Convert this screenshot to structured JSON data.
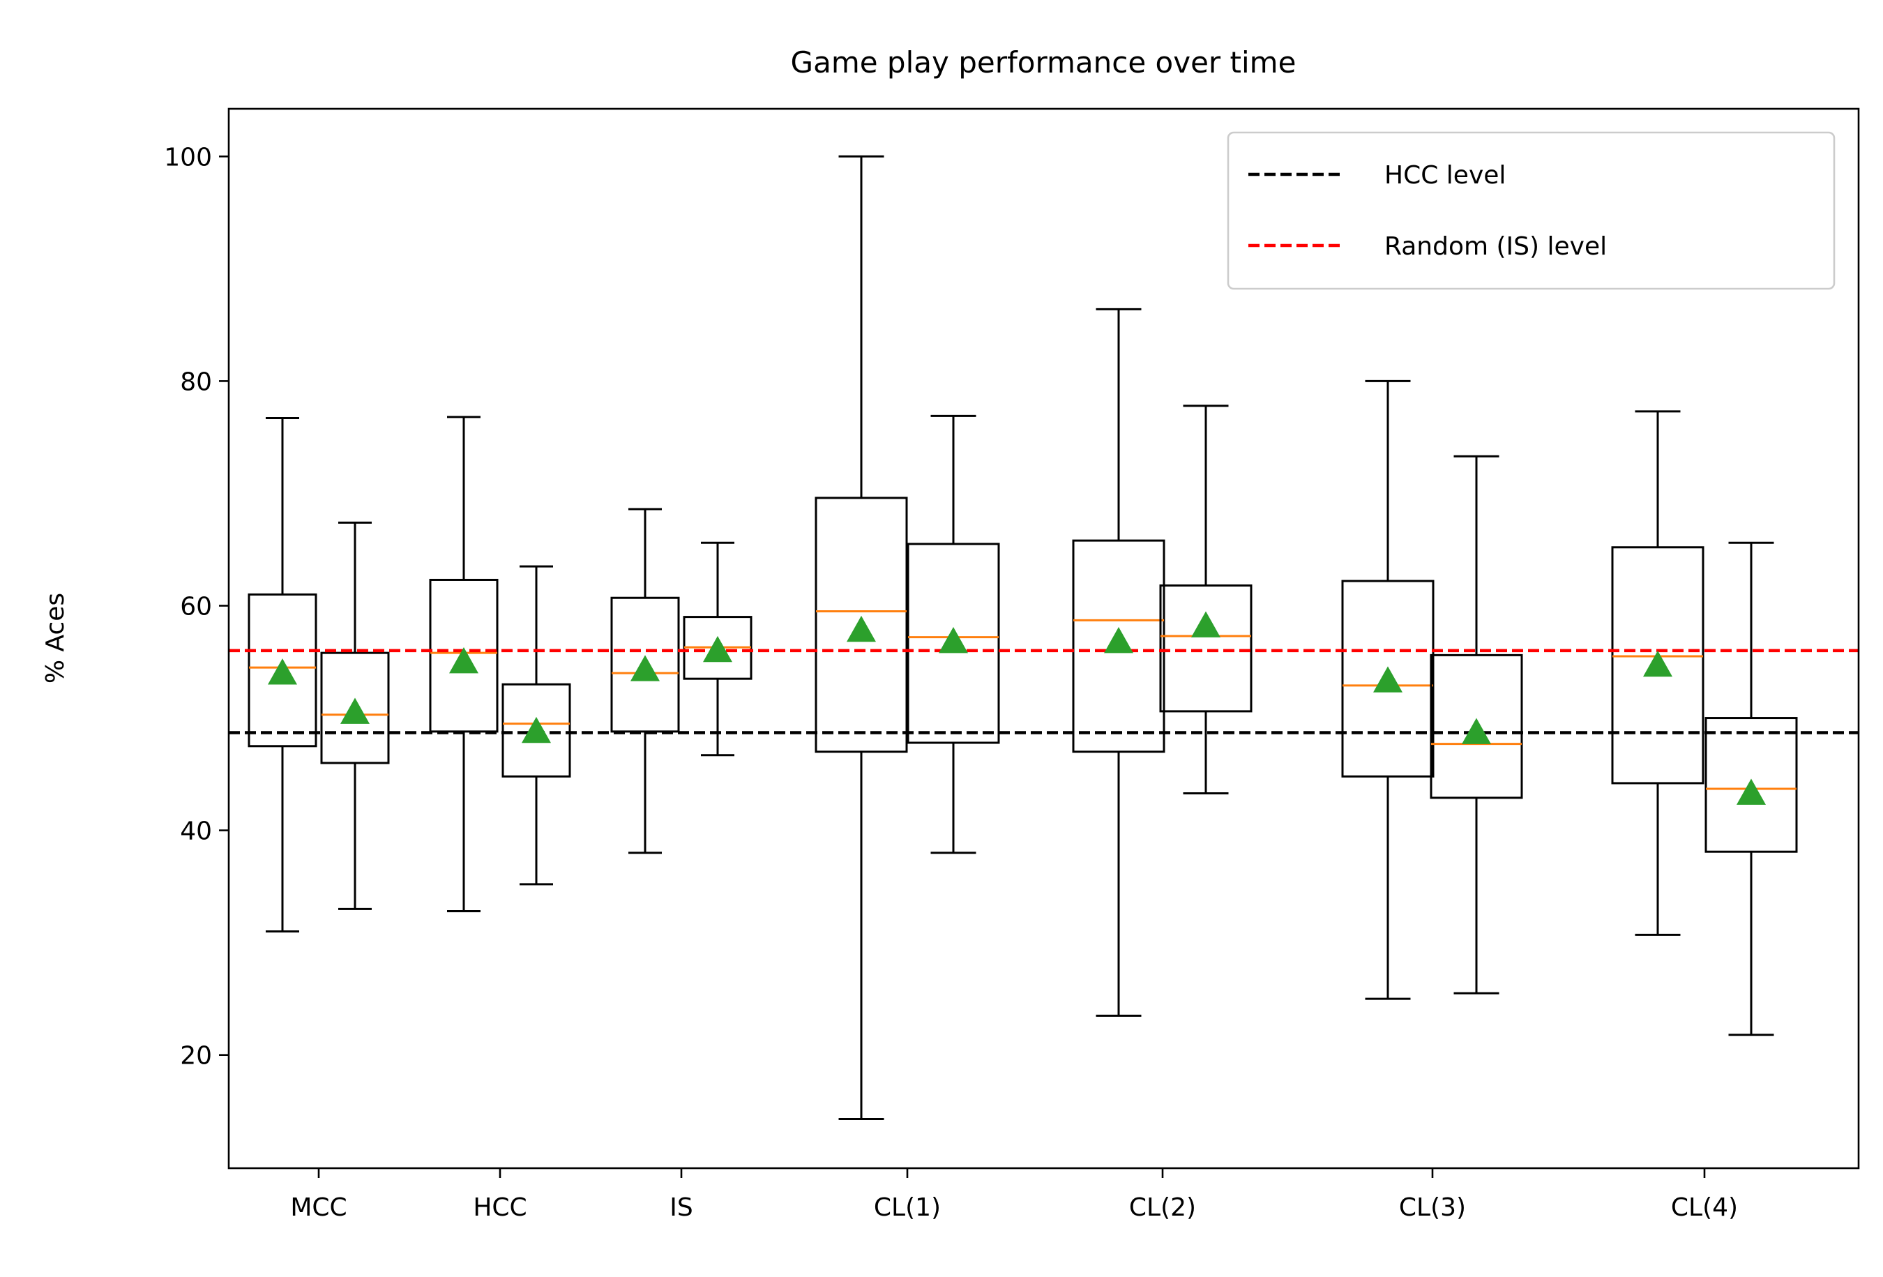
{
  "chart_data": {
    "type": "box",
    "title": "Game play performance over time",
    "xlabel": "",
    "ylabel": "% Aces",
    "ylim": [
      10,
      104.5
    ],
    "yticks": [
      20,
      40,
      60,
      80,
      100
    ],
    "categories": [
      "MCC",
      "HCC",
      "IS",
      "CL(1)",
      "CL(2)",
      "CL(3)",
      "CL(4)"
    ],
    "boxes": [
      {
        "category": "MCC",
        "whisker_low": 31.0,
        "q1": 47.5,
        "median": 54.5,
        "q3": 61.0,
        "whisker_high": 76.7,
        "mean": 54.0
      },
      {
        "category": "MCC",
        "whisker_low": 33.0,
        "q1": 46.0,
        "median": 50.3,
        "q3": 55.8,
        "whisker_high": 67.4,
        "mean": 50.5
      },
      {
        "category": "HCC",
        "whisker_low": 32.8,
        "q1": 48.8,
        "median": 55.8,
        "q3": 62.3,
        "whisker_high": 76.8,
        "mean": 55.0
      },
      {
        "category": "HCC",
        "whisker_low": 35.2,
        "q1": 44.8,
        "median": 49.5,
        "q3": 53.0,
        "whisker_high": 63.5,
        "mean": 48.8
      },
      {
        "category": "IS",
        "whisker_low": 38.0,
        "q1": 48.8,
        "median": 54.0,
        "q3": 60.7,
        "whisker_high": 68.6,
        "mean": 54.3
      },
      {
        "category": "IS",
        "whisker_low": 46.7,
        "q1": 53.5,
        "median": 56.3,
        "q3": 59.0,
        "whisker_high": 65.6,
        "mean": 56.0
      },
      {
        "category": "CL(1)",
        "whisker_low": 14.3,
        "q1": 47.0,
        "median": 59.5,
        "q3": 69.6,
        "whisker_high": 100.0,
        "mean": 57.8
      },
      {
        "category": "CL(1)",
        "whisker_low": 38.0,
        "q1": 47.8,
        "median": 57.2,
        "q3": 65.5,
        "whisker_high": 76.9,
        "mean": 56.8
      },
      {
        "category": "CL(2)",
        "whisker_low": 23.5,
        "q1": 47.0,
        "median": 58.7,
        "q3": 65.8,
        "whisker_high": 86.4,
        "mean": 56.8
      },
      {
        "category": "CL(2)",
        "whisker_low": 43.3,
        "q1": 50.6,
        "median": 57.3,
        "q3": 61.8,
        "whisker_high": 77.8,
        "mean": 58.2
      },
      {
        "category": "CL(3)",
        "whisker_low": 25.0,
        "q1": 44.8,
        "median": 52.9,
        "q3": 62.2,
        "whisker_high": 80.0,
        "mean": 53.3
      },
      {
        "category": "CL(3)",
        "whisker_low": 25.5,
        "q1": 42.9,
        "median": 47.7,
        "q3": 55.6,
        "whisker_high": 73.3,
        "mean": 48.7
      },
      {
        "category": "CL(4)",
        "whisker_low": 30.7,
        "q1": 44.2,
        "median": 55.5,
        "q3": 65.2,
        "whisker_high": 77.3,
        "mean": 54.7
      },
      {
        "category": "CL(4)",
        "whisker_low": 21.8,
        "q1": 38.1,
        "median": 43.7,
        "q3": 50.0,
        "whisker_high": 65.6,
        "mean": 43.3
      }
    ],
    "reference_lines": [
      {
        "name": "HCC level",
        "y": 48.7,
        "color": "#000000",
        "style": "dashed"
      },
      {
        "name": "Random (IS) level",
        "y": 56.0,
        "color": "#ff0000",
        "style": "dashed"
      }
    ],
    "legend": {
      "position": "top-right"
    },
    "colors": {
      "box": "#000000",
      "median": "#ff7f0e",
      "mean": "#2ca02c"
    }
  }
}
